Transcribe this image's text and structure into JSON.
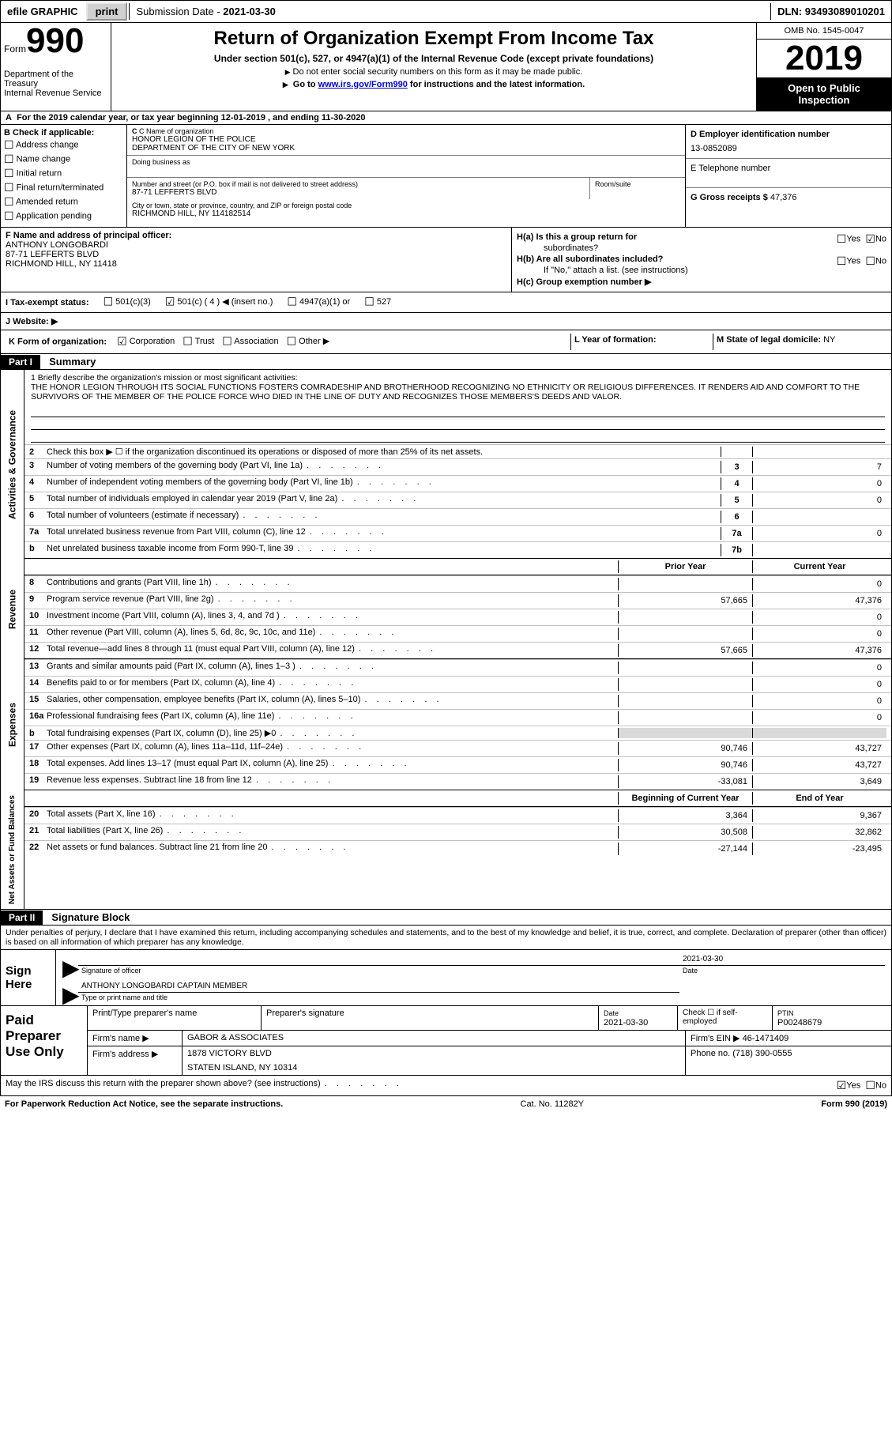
{
  "topbar": {
    "efile": "efile GRAPHIC",
    "print": "print",
    "submission_label": "Submission Date - ",
    "submission_date": "2021-03-30",
    "dln_label": "DLN: ",
    "dln": "93493089010201"
  },
  "header": {
    "form_word": "Form",
    "form_num": "990",
    "dept1": "Department of the Treasury",
    "dept2": "Internal Revenue Service",
    "title": "Return of Organization Exempt From Income Tax",
    "sub1": "Under section 501(c), 527, or 4947(a)(1) of the Internal Revenue Code (except private foundations)",
    "sub2": "Do not enter social security numbers on this form as it may be made public.",
    "sub3_a": "Go to ",
    "sub3_link": "www.irs.gov/Form990",
    "sub3_b": " for instructions and the latest information.",
    "omb": "OMB No. 1545-0047",
    "year": "2019",
    "inspect1": "Open to Public",
    "inspect2": "Inspection"
  },
  "period": {
    "text_a": "For the 2019 calendar year, or tax year beginning ",
    "begin": "12-01-2019",
    "text_b": " , and ending ",
    "end": "11-30-2020"
  },
  "boxB": {
    "hdr": "B Check if applicable:",
    "items": [
      "Address change",
      "Name change",
      "Initial return",
      "Final return/terminated",
      "Amended return",
      "Application pending"
    ]
  },
  "boxC": {
    "name_lbl": "C Name of organization",
    "name1": "HONOR LEGION OF THE POLICE",
    "name2": "DEPARTMENT OF THE CITY OF NEW YORK",
    "dba_lbl": "Doing business as",
    "addr_lbl": "Number and street (or P.O. box if mail is not delivered to street address)",
    "room_lbl": "Room/suite",
    "addr": "87-71 LEFFERTS BLVD",
    "city_lbl": "City or town, state or province, country, and ZIP or foreign postal code",
    "city": "RICHMOND HILL, NY  114182514"
  },
  "boxD": {
    "lbl": "D Employer identification number",
    "val": "13-0852089"
  },
  "boxE": {
    "lbl": "E Telephone number",
    "val": ""
  },
  "boxG": {
    "lbl": "G Gross receipts $ ",
    "val": "47,376"
  },
  "boxF": {
    "lbl": "F  Name and address of principal officer:",
    "name": "ANTHONY LONGOBARDI",
    "addr1": "87-71 LEFFERTS BLVD",
    "addr2": "RICHMOND HILL, NY  11418"
  },
  "boxH": {
    "a_lbl": "H(a)  Is this a group return for",
    "a_lbl2": "subordinates?",
    "a_no_checked": true,
    "b_lbl": "H(b)  Are all subordinates included?",
    "note": "If \"No,\" attach a list. (see instructions)",
    "c_lbl": "H(c)  Group exemption number ▶"
  },
  "boxI": {
    "lbl": "I  Tax-exempt status:",
    "opts": [
      "501(c)(3)",
      "501(c) ( 4 ) ◀ (insert no.)",
      "4947(a)(1) or",
      "527"
    ],
    "checked_index": 1
  },
  "boxJ": {
    "lbl": "J   Website: ▶"
  },
  "boxK": {
    "lbl": "K Form of organization:",
    "opts": [
      "Corporation",
      "Trust",
      "Association",
      "Other ▶"
    ],
    "checked_index": 0,
    "L_lbl": "L Year of formation:",
    "M_lbl": "M State of legal domicile: ",
    "M_val": "NY"
  },
  "part1": {
    "hdr": "Part I",
    "title": "Summary"
  },
  "mission": {
    "q": "1   Briefly describe the organization's mission or most significant activities:",
    "text": "THE HONOR LEGION THROUGH ITS SOCIAL FUNCTIONS FOSTERS COMRADESHIP AND BROTHERHOOD RECOGNIZING NO ETHNICITY OR RELIGIOUS DIFFERENCES. IT RENDERS AID AND COMFORT TO THE SURVIVORS OF THE MEMBER OF THE POLICE FORCE WHO DIED IN THE LINE OF DUTY AND RECOGNIZES THOSE MEMBERS'S DEEDS AND VALOR."
  },
  "gov_lines": [
    {
      "n": "2",
      "d": "Check this box ▶ ☐  if the organization discontinued its operations or disposed of more than 25% of its net assets.",
      "k": "",
      "v": ""
    },
    {
      "n": "3",
      "d": "Number of voting members of the governing body (Part VI, line 1a)",
      "k": "3",
      "v": "7"
    },
    {
      "n": "4",
      "d": "Number of independent voting members of the governing body (Part VI, line 1b)",
      "k": "4",
      "v": "0"
    },
    {
      "n": "5",
      "d": "Total number of individuals employed in calendar year 2019 (Part V, line 2a)",
      "k": "5",
      "v": "0"
    },
    {
      "n": "6",
      "d": "Total number of volunteers (estimate if necessary)",
      "k": "6",
      "v": ""
    },
    {
      "n": "7a",
      "d": "Total unrelated business revenue from Part VIII, column (C), line 12",
      "k": "7a",
      "v": "0"
    },
    {
      "n": "b",
      "d": "Net unrelated business taxable income from Form 990-T, line 39",
      "k": "7b",
      "v": ""
    }
  ],
  "rev_hdr": {
    "c1": "Prior Year",
    "c2": "Current Year"
  },
  "rev_lines": [
    {
      "n": "8",
      "d": "Contributions and grants (Part VIII, line 1h)",
      "p": "",
      "c": "0"
    },
    {
      "n": "9",
      "d": "Program service revenue (Part VIII, line 2g)",
      "p": "57,665",
      "c": "47,376"
    },
    {
      "n": "10",
      "d": "Investment income (Part VIII, column (A), lines 3, 4, and 7d )",
      "p": "",
      "c": "0"
    },
    {
      "n": "11",
      "d": "Other revenue (Part VIII, column (A), lines 5, 6d, 8c, 9c, 10c, and 11e)",
      "p": "",
      "c": "0"
    },
    {
      "n": "12",
      "d": "Total revenue—add lines 8 through 11 (must equal Part VIII, column (A), line 12)",
      "p": "57,665",
      "c": "47,376"
    }
  ],
  "exp_lines": [
    {
      "n": "13",
      "d": "Grants and similar amounts paid (Part IX, column (A), lines 1–3 )",
      "p": "",
      "c": "0"
    },
    {
      "n": "14",
      "d": "Benefits paid to or for members (Part IX, column (A), line 4)",
      "p": "",
      "c": "0"
    },
    {
      "n": "15",
      "d": "Salaries, other compensation, employee benefits (Part IX, column (A), lines 5–10)",
      "p": "",
      "c": "0"
    },
    {
      "n": "16a",
      "d": "Professional fundraising fees (Part IX, column (A), line 11e)",
      "p": "",
      "c": "0"
    },
    {
      "n": "b",
      "d": "Total fundraising expenses (Part IX, column (D), line 25) ▶0",
      "p": "shade",
      "c": "shade"
    },
    {
      "n": "17",
      "d": "Other expenses (Part IX, column (A), lines 11a–11d, 11f–24e)",
      "p": "90,746",
      "c": "43,727"
    },
    {
      "n": "18",
      "d": "Total expenses. Add lines 13–17 (must equal Part IX, column (A), line 25)",
      "p": "90,746",
      "c": "43,727"
    },
    {
      "n": "19",
      "d": "Revenue less expenses. Subtract line 18 from line 12",
      "p": "-33,081",
      "c": "3,649"
    }
  ],
  "na_hdr": {
    "c1": "Beginning of Current Year",
    "c2": "End of Year"
  },
  "na_lines": [
    {
      "n": "20",
      "d": "Total assets (Part X, line 16)",
      "p": "3,364",
      "c": "9,367"
    },
    {
      "n": "21",
      "d": "Total liabilities (Part X, line 26)",
      "p": "30,508",
      "c": "32,862"
    },
    {
      "n": "22",
      "d": "Net assets or fund balances. Subtract line 21 from line 20",
      "p": "-27,144",
      "c": "-23,495"
    }
  ],
  "vlabels": {
    "gov": "Activities & Governance",
    "rev": "Revenue",
    "exp": "Expenses",
    "na": "Net Assets or Fund Balances"
  },
  "part2": {
    "hdr": "Part II",
    "title": "Signature Block",
    "decl": "Under penalties of perjury, I declare that I have examined this return, including accompanying schedules and statements, and to the best of my knowledge and belief, it is true, correct, and complete. Declaration of preparer (other than officer) is based on all information of which preparer has any knowledge."
  },
  "sign": {
    "here": "Sign Here",
    "sig_lbl": "Signature of officer",
    "date_lbl": "Date",
    "date": "2021-03-30",
    "name": "ANTHONY LONGOBARDI  CAPTAIN MEMBER",
    "name_lbl": "Type or print name and title"
  },
  "prep": {
    "left": "Paid Preparer Use Only",
    "r1": {
      "a": "Print/Type preparer's name",
      "b": "Preparer's signature",
      "c_lbl": "Date",
      "c": "2021-03-30",
      "d": "Check ☐ if self-employed",
      "e_lbl": "PTIN",
      "e": "P00248679"
    },
    "r2": {
      "a": "Firm's name    ▶",
      "b": "GABOR & ASSOCIATES",
      "c": "Firm's EIN ▶",
      "d": "46-1471409"
    },
    "r3": {
      "a": "Firm's address ▶",
      "b1": "1878 VICTORY BLVD",
      "b2": "STATEN ISLAND, NY  10314",
      "c": "Phone no. (718) 390-0555"
    }
  },
  "discuss": {
    "q": "May the IRS discuss this return with the preparer shown above? (see instructions)",
    "yes": "Yes",
    "no": "No",
    "yes_checked": true
  },
  "footer": {
    "a": "For Paperwork Reduction Act Notice, see the separate instructions.",
    "b": "Cat. No. 11282Y",
    "c": "Form 990 (2019)"
  }
}
